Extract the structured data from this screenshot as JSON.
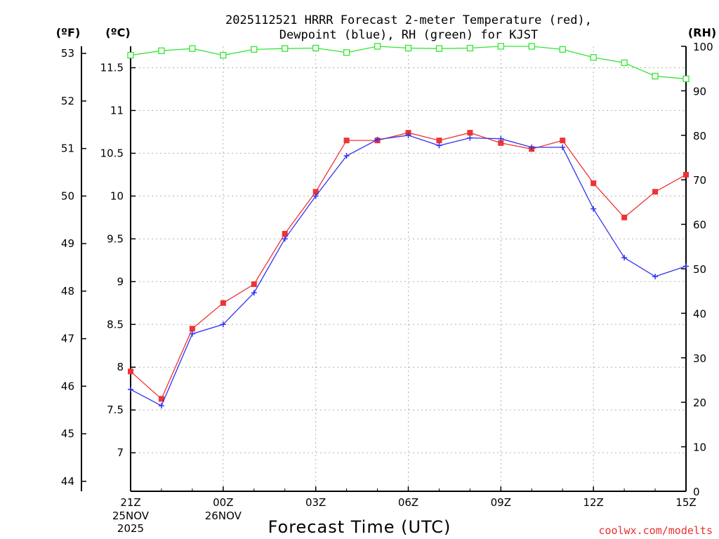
{
  "chart_data": {
    "type": "line",
    "title_line1": "2025112521 HRRR Forecast 2-meter Temperature (red),",
    "title_line2": "Dewpoint (blue), RH (green) for KJST",
    "xlabel": "Forecast Time (UTC)",
    "unit_f": "(ºF)",
    "unit_c": "(ºC)",
    "unit_rh": "(RH)",
    "x_ticks": [
      {
        "hour": 0,
        "label": "21Z",
        "sub1": "25NOV",
        "sub2": "2025"
      },
      {
        "hour": 3,
        "label": "00Z",
        "sub1": "26NOV",
        "sub2": ""
      },
      {
        "hour": 6,
        "label": "03Z",
        "sub1": "",
        "sub2": ""
      },
      {
        "hour": 9,
        "label": "06Z",
        "sub1": "",
        "sub2": ""
      },
      {
        "hour": 12,
        "label": "09Z",
        "sub1": "",
        "sub2": ""
      },
      {
        "hour": 15,
        "label": "12Z",
        "sub1": "",
        "sub2": ""
      },
      {
        "hour": 18,
        "label": "15Z",
        "sub1": "",
        "sub2": ""
      }
    ],
    "xlim": [
      0,
      18
    ],
    "celsius_ylim": [
      6.55,
      11.75
    ],
    "celsius_ticks": [
      "7",
      "7.5",
      "8",
      "8.5",
      "9",
      "9.5",
      "10",
      "10.5",
      "11",
      "11.5"
    ],
    "fahrenheit_ticks": [
      "44",
      "45",
      "46",
      "47",
      "48",
      "49",
      "50",
      "51",
      "52",
      "53"
    ],
    "rh_ylim": [
      0,
      100
    ],
    "rh_ticks": [
      "0",
      "10",
      "20",
      "30",
      "40",
      "50",
      "60",
      "70",
      "80",
      "90",
      "100"
    ],
    "series": [
      {
        "name": "Temperature",
        "units": "C",
        "color": "#f03232",
        "values": [
          7.95,
          7.63,
          8.45,
          8.75,
          8.97,
          9.56,
          10.05,
          10.65,
          10.65,
          10.74,
          10.65,
          10.74,
          10.62,
          10.55,
          10.65,
          10.15,
          9.75,
          10.05,
          10.25
        ]
      },
      {
        "name": "Dewpoint",
        "units": "C",
        "color": "#3232f0",
        "values": [
          7.74,
          7.55,
          8.39,
          8.5,
          8.87,
          9.5,
          10.0,
          10.47,
          10.66,
          10.71,
          10.59,
          10.68,
          10.67,
          10.57,
          10.57,
          9.85,
          9.28,
          9.06,
          9.18
        ]
      },
      {
        "name": "RH",
        "units": "%",
        "color": "#32e632",
        "values": [
          98,
          99,
          99.5,
          98,
          99.3,
          99.5,
          99.6,
          98.6,
          100,
          99.6,
          99.5,
          99.6,
          100,
          100,
          99.3,
          97.5,
          96.3,
          93.3,
          92.7
        ]
      }
    ]
  },
  "credit": "coolwx.com/modelts"
}
